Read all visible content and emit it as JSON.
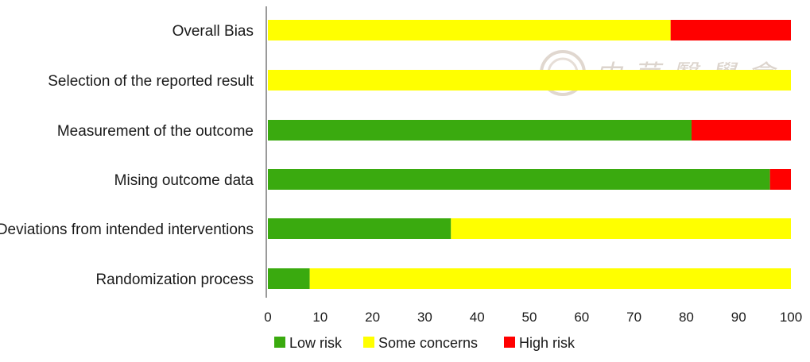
{
  "chart_data": {
    "type": "bar",
    "orientation": "horizontal",
    "stacked": true,
    "categories": [
      "Overall Bias",
      "Selection of the reported result",
      "Measurement of the outcome",
      "Mising outcome data",
      "Deviations from intended interventions",
      "Randomization process"
    ],
    "series": [
      {
        "name": "Low risk",
        "color": "#3aaa0f",
        "values": [
          0,
          0,
          81,
          96,
          35,
          8
        ]
      },
      {
        "name": "Some concerns",
        "color": "#ffff00",
        "values": [
          77,
          100,
          0,
          0,
          65,
          92
        ]
      },
      {
        "name": "High risk",
        "color": "#ff0000",
        "values": [
          23,
          0,
          19,
          4,
          0,
          0
        ]
      }
    ],
    "xlim": [
      0,
      100
    ],
    "xticks": [
      "0",
      "10",
      "20",
      "30",
      "40",
      "50",
      "60",
      "70",
      "80",
      "90",
      "100"
    ],
    "grid": false,
    "legend_position": "bottom",
    "title": "",
    "xlabel": "",
    "ylabel": ""
  },
  "watermark": {
    "text": "中華醫學會"
  }
}
